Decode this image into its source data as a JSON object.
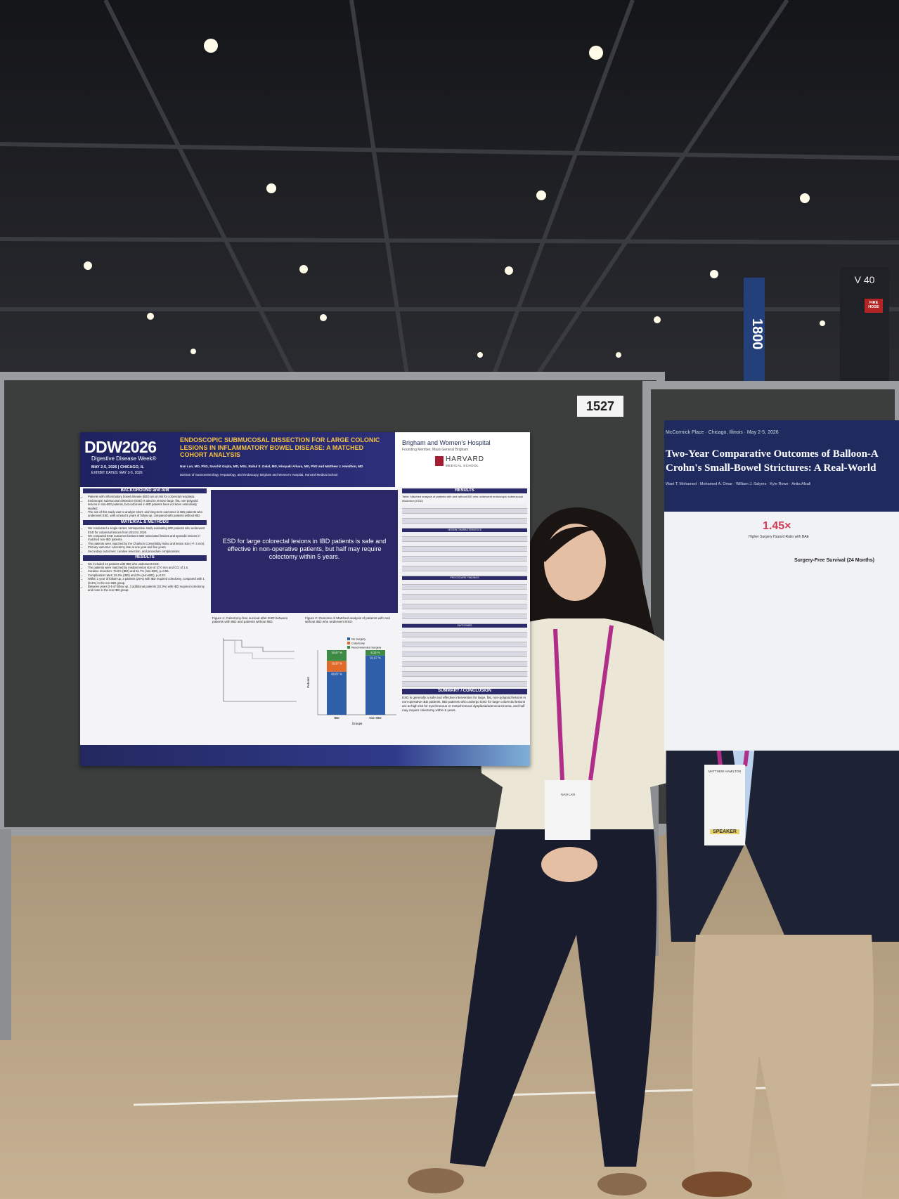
{
  "booth_number": "1527",
  "signage": {
    "aisle": "1800",
    "row": "V 40",
    "fire": "FIRE HOSE"
  },
  "poster": {
    "logo": "DDW2026",
    "logo_sub": "Digestive Disease Week®",
    "dates": "MAY 2-5, 2026 | CHICAGO, IL",
    "exhibit": "EXHIBIT DATES: MAY 3-5, 2026",
    "title": "ENDOSCOPIC SUBMUCOSAL DISSECTION FOR LARGE COLONIC LESIONS IN INFLAMMATORY BOWEL DISEASE: A MATCHED COHORT ANALYSIS",
    "authors": "Nan Lan, MD, PhD, Sanchit Gupta, MD, MSc, Rahul S. Dalal, MD, Hiroyuki Aihara, MD, PhD and Matthew J. Hamilton, MD",
    "affiliation": "Division of Gastroenterology, Hepatology, and Endoscopy, Brigham and Women's Hospital, Harvard Medical School",
    "hospital": "Brigham and Women's Hospital",
    "hospital_sub": "Founding Member, Mass General Brigham",
    "school": "HARVARD",
    "school_sub": "MEDICAL SCHOOL",
    "background": {
      "heading": "BACKGROUND and AIM",
      "bullets": [
        "Patients with inflammatory bowel disease (IBD) are at risk for colorectal neoplasia.",
        "Endoscopic submucosal dissection (ESD) is used to remove large, flat, non-polypoid lesions in non-IBD patients, but outcomes in IBD patients have not been extensively studied.",
        "The aim of this study was to analyze short- and long-term outcomes in IBD patients who underwent ESD, with at least 5 years of follow-up, compared with patients without IBD."
      ]
    },
    "methods": {
      "heading": "MATERIAL & METHODS",
      "bullets": [
        "We conducted a single-center, retrospective study evaluating IBD patients who underwent ESD for colorectal lesions from 2014 to 2020.",
        "We compared ESD outcomes between IBD-associated lesions and sporadic lesions in matched non-IBD patients.",
        "The patients were matched by the Charlson Comorbidity Index and lesion size (+/- 5 mm).",
        "Primary outcome: colectomy rate at one year and five years.",
        "Secondary outcomes: curative resection, and procedure complications."
      ]
    },
    "results_left": {
      "heading": "RESULTS",
      "bullets": [
        "We included 12 patients with IBD who underwent ESD.",
        "The patients were matched by median lesion size of 37.0 mm and CCI of 1.5.",
        "Curative resection: 75.0% (IBD) and 91.7% (non-IBD), p=0.56.",
        "Complication rates: 25.0% (IBD) and 0% (non-IBD), p=0.22.",
        "Within 1 year of follow-up, 3 patients (25%) with IBD required colectomy, compared with 1 (8.3%) in the non-IBD group.",
        "Between years 2-5 of follow up, 3 additional patients (33.3%) with IBD required colectomy and none in the non-IBD group."
      ]
    },
    "key_message": "ESD for large colorectal lesions in IBD patients is safe and effective in non-operative patients, but half may require colectomy within 5 years.",
    "figure1": "Figure 1: Colectomy-free survival after ESD between patients with IBD and patients without IBD.",
    "figure2": "Figure 2: Outcome of Matched analysis of patients with and without IBD who underwent ESD.",
    "figure2_chart": {
      "categories": [
        "IBD",
        "Non-IBD"
      ],
      "x_label": "Groups",
      "y_label": "Percent",
      "series": [
        {
          "name": "No Surgery",
          "color": "#2f5fa8",
          "values": [
            66.67,
            91.67
          ],
          "value_labels": [
            "66.67 %",
            "91.67 %"
          ]
        },
        {
          "name": "Colectomy",
          "color": "#e06a2c",
          "values": [
            16.67,
            0
          ],
          "value_labels": [
            "16.67 %",
            null
          ]
        },
        {
          "name": "Recommended Surgery",
          "color": "#3d8a45",
          "values": [
            16.67,
            8.33
          ],
          "value_labels": [
            "16.67 %",
            "8.33 %"
          ]
        }
      ]
    },
    "results_right": {
      "heading": "RESULTS",
      "table_caption": "Table. Matched analysis of patients with and without IBD who underwent endoscopic submucosal dissection (ESD)",
      "subheads": [
        "LESION CHARACTERISTICS",
        "PROCEDURE FINDINGS",
        "OUTCOMES"
      ]
    },
    "conclusion": {
      "heading": "SUMMARY / CONCLUSION",
      "text": "ESD is generally a safe and effective intervention for large, flat, non-polypoid lesions in non-operative IBD patients. IBD patients who undergo ESD for large colorectal lesions are at high risk for synchronous or metachronous dysplasia/adenocarcinoma, and half may require colectomy within 5 years."
    }
  },
  "neighbor_poster": {
    "venue": "McCormick Place · Chicago, Illinois · May 2-5, 2026",
    "title_line1": "Two-Year Comparative Outcomes of Balloon-A",
    "title_line2": "Crohn's Small-Bowel Strictures: A Real-World",
    "authors": "Wael T. Mohamed · Mohamed A. Omar · William J. Salyers · Kyle Rowe · Anita Afzali",
    "stat": "1.45×",
    "stat_caption": "Higher Surgery Hazard Ratio with BAE",
    "panel": "Surgery-Free Survival (24 Months)"
  },
  "badges": [
    "NAN LAN",
    "MATTHEW HAMILTON",
    "SPEAKER"
  ]
}
